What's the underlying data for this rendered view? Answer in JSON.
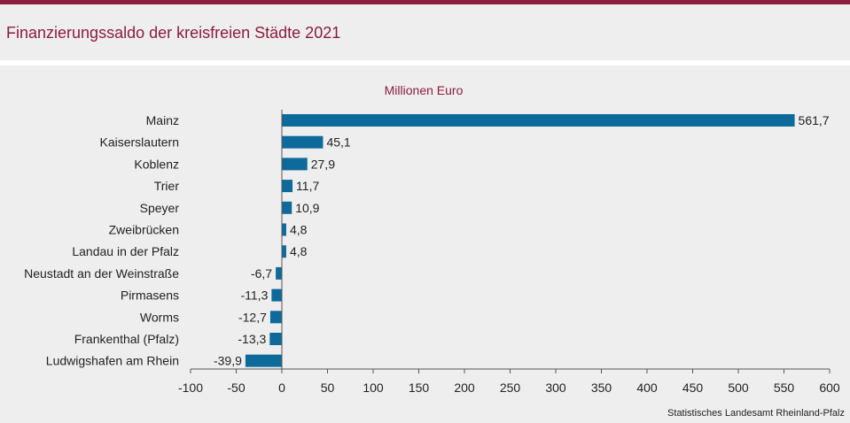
{
  "title": "Finanzierungssaldo der kreisfreien Städte 2021",
  "source": "Statistisches Landesamt Rheinland-Pfalz",
  "colors": {
    "accent": "#8c1d3c",
    "bar": "#0e6a9a"
  },
  "chart_data": {
    "type": "bar",
    "orientation": "horizontal",
    "unit_label": "Millionen  Euro",
    "categories": [
      "Mainz",
      "Kaiserslautern",
      "Koblenz",
      "Trier",
      "Speyer",
      "Zweibrücken",
      "Landau in der Pfalz",
      "Neustadt an der Weinstraße",
      "Pirmasens",
      "Worms",
      "Frankenthal (Pfalz)",
      "Ludwigshafen am Rhein"
    ],
    "values": [
      561.7,
      45.1,
      27.9,
      11.7,
      10.9,
      4.8,
      4.8,
      -6.7,
      -11.3,
      -12.7,
      -13.3,
      -39.9
    ],
    "value_labels": [
      "561,7",
      "45,1",
      "27,9",
      "11,7",
      "10,9",
      "4,8",
      "4,8",
      "-6,7",
      "-11,3",
      "-12,7",
      "-13,3",
      "-39,9"
    ],
    "xlim": [
      -100,
      600
    ],
    "xticks": [
      -100,
      -50,
      0,
      50,
      100,
      150,
      200,
      250,
      300,
      350,
      400,
      450,
      500,
      550,
      600
    ],
    "xtick_labels": [
      "-100",
      "-50",
      "0",
      "50",
      "100",
      "150",
      "200",
      "250",
      "300",
      "350",
      "400",
      "450",
      "500",
      "550",
      "600"
    ],
    "grid": false,
    "legend": "none"
  }
}
